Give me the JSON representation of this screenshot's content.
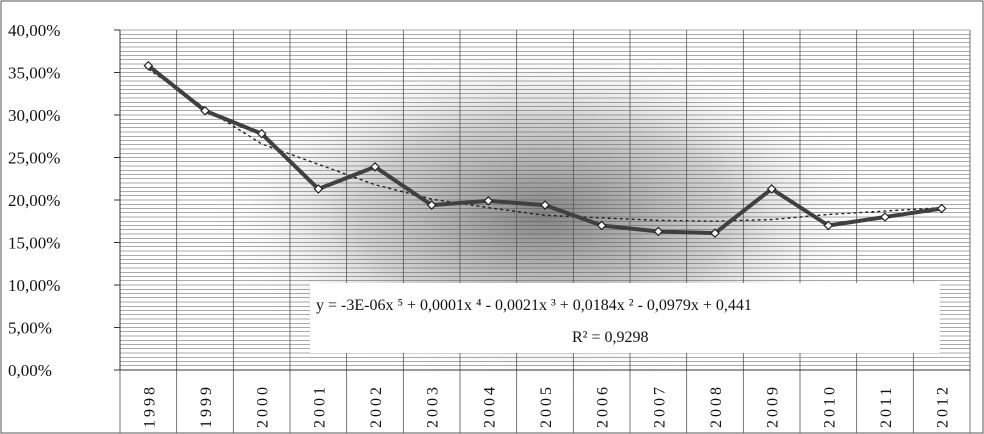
{
  "chart_data": {
    "type": "line",
    "categories": [
      "1998",
      "1999",
      "2000",
      "2001",
      "2002",
      "2003",
      "2004",
      "2005",
      "2006",
      "2007",
      "2008",
      "2009",
      "2010",
      "2011",
      "2012"
    ],
    "series": [
      {
        "values": [
          35.8,
          30.5,
          27.8,
          21.3,
          23.9,
          19.4,
          19.9,
          19.4,
          17.0,
          16.3,
          16.1,
          21.3,
          17.0,
          18.0,
          19.0
        ]
      }
    ],
    "trendline": {
      "type": "polynomial",
      "order": 5,
      "equation": "y =   -3E-06x  ⁵ + 0,0001x   ⁴ - 0,0021x   ³ + 0,0184x   ² - 0,0979x + 0,441",
      "r_squared": "R² = 0,9298",
      "values": [
        35.4,
        30.8,
        26.6,
        24.2,
        21.8,
        20.1,
        19.1,
        18.2,
        17.9,
        17.6,
        17.5,
        17.7,
        18.3,
        18.7,
        19.1
      ]
    },
    "y_ticks": [
      "0,00%",
      "5,00%",
      "10,00%",
      "15,00%",
      "20,00%",
      "25,00%",
      "30,00%",
      "35,00%",
      "40,00%"
    ],
    "ylim": [
      0,
      40
    ],
    "y_step": 5,
    "grid": true,
    "colors": {
      "series": "#404040",
      "trend": "#222222",
      "grid": "#555555",
      "marker_fill": "#ffffff"
    }
  }
}
